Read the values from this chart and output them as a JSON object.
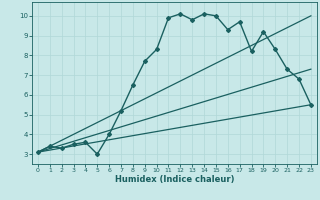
{
  "title": "",
  "xlabel": "Humidex (Indice chaleur)",
  "bg_color": "#c8e8e8",
  "grid_color": "#b0d8d8",
  "line_color": "#1a6060",
  "xlim": [
    -0.5,
    23.5
  ],
  "ylim": [
    2.5,
    10.7
  ],
  "xticks": [
    0,
    1,
    2,
    3,
    4,
    5,
    6,
    7,
    8,
    9,
    10,
    11,
    12,
    13,
    14,
    15,
    16,
    17,
    18,
    19,
    20,
    21,
    22,
    23
  ],
  "yticks": [
    3,
    4,
    5,
    6,
    7,
    8,
    9,
    10
  ],
  "lines": [
    {
      "x": [
        0,
        1,
        2,
        3,
        4,
        5,
        6,
        7,
        8,
        9,
        10,
        11,
        12,
        13,
        14,
        15,
        16,
        17,
        18,
        19,
        20,
        21,
        22,
        23
      ],
      "y": [
        3.1,
        3.4,
        3.3,
        3.5,
        3.6,
        3.0,
        4.0,
        5.2,
        6.5,
        7.7,
        8.3,
        9.9,
        10.1,
        9.8,
        10.1,
        10.0,
        9.3,
        9.7,
        8.2,
        9.2,
        8.3,
        7.3,
        6.8,
        5.5
      ],
      "marker": "D",
      "markersize": 2.0,
      "linewidth": 1.0,
      "zorder": 3
    },
    {
      "x": [
        0,
        23
      ],
      "y": [
        3.1,
        10.0
      ],
      "marker": null,
      "markersize": 0,
      "linewidth": 0.9,
      "zorder": 2
    },
    {
      "x": [
        0,
        23
      ],
      "y": [
        3.1,
        7.3
      ],
      "marker": null,
      "markersize": 0,
      "linewidth": 0.9,
      "zorder": 2
    },
    {
      "x": [
        0,
        23
      ],
      "y": [
        3.1,
        5.5
      ],
      "marker": null,
      "markersize": 0,
      "linewidth": 0.9,
      "zorder": 2
    }
  ]
}
